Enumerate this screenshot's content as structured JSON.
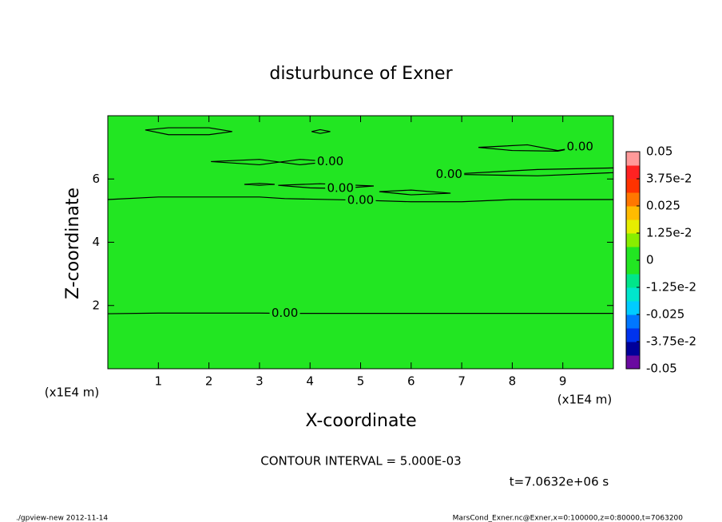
{
  "chart_data": {
    "type": "contour",
    "title": "disturbunce of Exner",
    "xlabel": "X-coordinate",
    "ylabel": "Z-coordinate",
    "x_unit": "(x1E4 m)",
    "xlim": [
      0,
      10
    ],
    "ylim": [
      0,
      8
    ],
    "xticks": [
      1,
      2,
      3,
      4,
      5,
      6,
      7,
      8,
      9
    ],
    "yticks": [
      2,
      4,
      6
    ],
    "fill_color": "#22e622",
    "line_color": "#000000",
    "contours": [
      {
        "level": 0,
        "label": "0.00",
        "x": [
          0,
          1,
          2,
          3,
          3.5,
          4.5,
          6,
          8,
          10
        ],
        "y": [
          1.74,
          1.76,
          1.76,
          1.76,
          1.75,
          1.75,
          1.75,
          1.75,
          1.75
        ]
      },
      {
        "level": 0,
        "label": "0.00",
        "x": [
          0,
          1,
          2,
          3,
          3.5,
          5,
          6,
          7,
          8,
          10
        ],
        "y": [
          5.35,
          5.43,
          5.43,
          5.43,
          5.38,
          5.33,
          5.28,
          5.28,
          5.35,
          5.35
        ]
      },
      {
        "level": 0,
        "x": [
          0.74,
          1.2,
          2.0,
          2.46,
          2.0,
          1.2,
          0.74
        ],
        "y": [
          7.55,
          7.62,
          7.62,
          7.5,
          7.4,
          7.4,
          7.55
        ]
      },
      {
        "level": 0,
        "x": [
          4.03,
          4.2,
          4.4,
          4.2,
          4.03
        ],
        "y": [
          7.5,
          7.56,
          7.5,
          7.44,
          7.5
        ]
      },
      {
        "level": 0,
        "label": "0.00",
        "x": [
          2.04,
          3.0,
          3.8,
          4.4,
          3.8,
          3.0,
          2.04
        ],
        "y": [
          6.55,
          6.62,
          6.45,
          6.55,
          6.62,
          6.45,
          6.55
        ]
      },
      {
        "level": 0,
        "x": [
          2.7,
          3.0,
          3.3,
          3.0,
          2.7
        ],
        "y": [
          5.83,
          5.86,
          5.83,
          5.8,
          5.83
        ]
      },
      {
        "level": 0,
        "label": "0.00",
        "x": [
          3.37,
          4.2,
          5.26,
          4.6,
          4.0,
          3.37
        ],
        "y": [
          5.8,
          5.85,
          5.78,
          5.7,
          5.72,
          5.8
        ]
      },
      {
        "level": 0,
        "x": [
          5.37,
          6.0,
          6.78,
          6.0,
          5.37
        ],
        "y": [
          5.6,
          5.65,
          5.55,
          5.5,
          5.6
        ]
      },
      {
        "level": 0,
        "label": "0.00",
        "x": [
          7.33,
          8.3,
          8.9,
          9.34,
          8.9,
          8.0,
          7.33
        ],
        "y": [
          7.0,
          7.08,
          6.9,
          7.02,
          6.88,
          6.9,
          7.0
        ]
      },
      {
        "level": 0,
        "label": "0.00",
        "x": [
          10,
          8.5,
          6.75,
          8.5,
          10
        ],
        "y": [
          6.35,
          6.3,
          6.15,
          6.1,
          6.2
        ]
      }
    ],
    "colorbar_lim": [
      -0.05,
      0.05
    ],
    "colorbar_ticks": [
      -0.05,
      {
        "value": -0.0375,
        "label": "-3.75e-2"
      },
      -0.025,
      {
        "value": -0.0125,
        "label": "-1.25e-2"
      },
      0,
      {
        "value": 0.0125,
        "label": "1.25e-2"
      },
      0.025,
      {
        "value": 0.0375,
        "label": "3.75e-2"
      },
      0.05
    ],
    "colorbar_colors": [
      "#6a0aa0",
      "#000099",
      "#0033ee",
      "#0077ff",
      "#00ccff",
      "#00e6cc",
      "#00e68a",
      "#22e622",
      "#22e622",
      "#88ee00",
      "#e6ee00",
      "#ffbb00",
      "#ff7700",
      "#ff3300",
      "#ff2222",
      "#ff9a9a"
    ],
    "contour_interval": "CONTOUR INTERVAL = 5.000E-03",
    "time": "t=7.0632e+06 s",
    "footer_left": "./gpview-new  2012-11-14",
    "footer_right": "MarsCond_Exner.nc@Exner,x=0:100000,z=0:80000,t=7063200"
  }
}
